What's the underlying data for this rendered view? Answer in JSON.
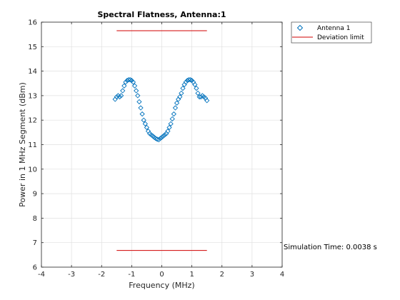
{
  "chart_data": {
    "type": "scatter",
    "title": "Spectral Flatness, Antenna:1",
    "xlabel": "Frequency (MHz)",
    "ylabel": "Power in 1 MHz Segment (dBm)",
    "xlim": [
      -4,
      4
    ],
    "ylim": [
      6,
      16
    ],
    "xticks": [
      -4,
      -3,
      -2,
      -1,
      0,
      1,
      2,
      3,
      4
    ],
    "yticks": [
      6,
      7,
      8,
      9,
      10,
      11,
      12,
      13,
      14,
      15,
      16
    ],
    "grid": true,
    "legend_position": "outside-top-right",
    "series": [
      {
        "name": "Antenna 1",
        "kind": "scatter",
        "marker": "diamond",
        "color": "#0072BD",
        "x": [
          -1.55,
          -1.5,
          -1.45,
          -1.4,
          -1.35,
          -1.3,
          -1.25,
          -1.2,
          -1.15,
          -1.1,
          -1.05,
          -1.0,
          -0.95,
          -0.9,
          -0.85,
          -0.8,
          -0.75,
          -0.7,
          -0.65,
          -0.6,
          -0.55,
          -0.5,
          -0.45,
          -0.4,
          -0.35,
          -0.3,
          -0.25,
          -0.2,
          -0.15,
          -0.1,
          -0.05,
          0.0,
          0.05,
          0.1,
          0.15,
          0.2,
          0.25,
          0.3,
          0.35,
          0.4,
          0.45,
          0.5,
          0.55,
          0.6,
          0.65,
          0.7,
          0.75,
          0.8,
          0.85,
          0.9,
          0.95,
          1.0,
          1.05,
          1.1,
          1.15,
          1.2,
          1.25,
          1.3,
          1.35,
          1.4,
          1.45,
          1.5
        ],
        "y": [
          12.85,
          12.95,
          13.0,
          12.95,
          13.0,
          13.2,
          13.4,
          13.55,
          13.62,
          13.65,
          13.65,
          13.62,
          13.55,
          13.4,
          13.2,
          13.0,
          12.75,
          12.5,
          12.25,
          12.0,
          11.85,
          11.7,
          11.55,
          11.45,
          11.4,
          11.35,
          11.3,
          11.25,
          11.22,
          11.2,
          11.25,
          11.3,
          11.35,
          11.4,
          11.45,
          11.55,
          11.7,
          11.85,
          12.05,
          12.25,
          12.5,
          12.7,
          12.85,
          12.95,
          13.1,
          13.3,
          13.45,
          13.55,
          13.62,
          13.65,
          13.65,
          13.62,
          13.55,
          13.45,
          13.3,
          13.1,
          12.95,
          12.95,
          13.0,
          12.95,
          12.9,
          12.8
        ]
      },
      {
        "name": "Deviation limit",
        "kind": "line",
        "color": "#D00000",
        "segments": [
          {
            "x": [
              -1.5,
              1.5
            ],
            "y": [
              15.65,
              15.65
            ]
          },
          {
            "x": [
              -1.5,
              1.5
            ],
            "y": [
              6.68,
              6.68
            ]
          }
        ]
      }
    ],
    "annotation": "Simulation Time: 0.0038 s"
  }
}
